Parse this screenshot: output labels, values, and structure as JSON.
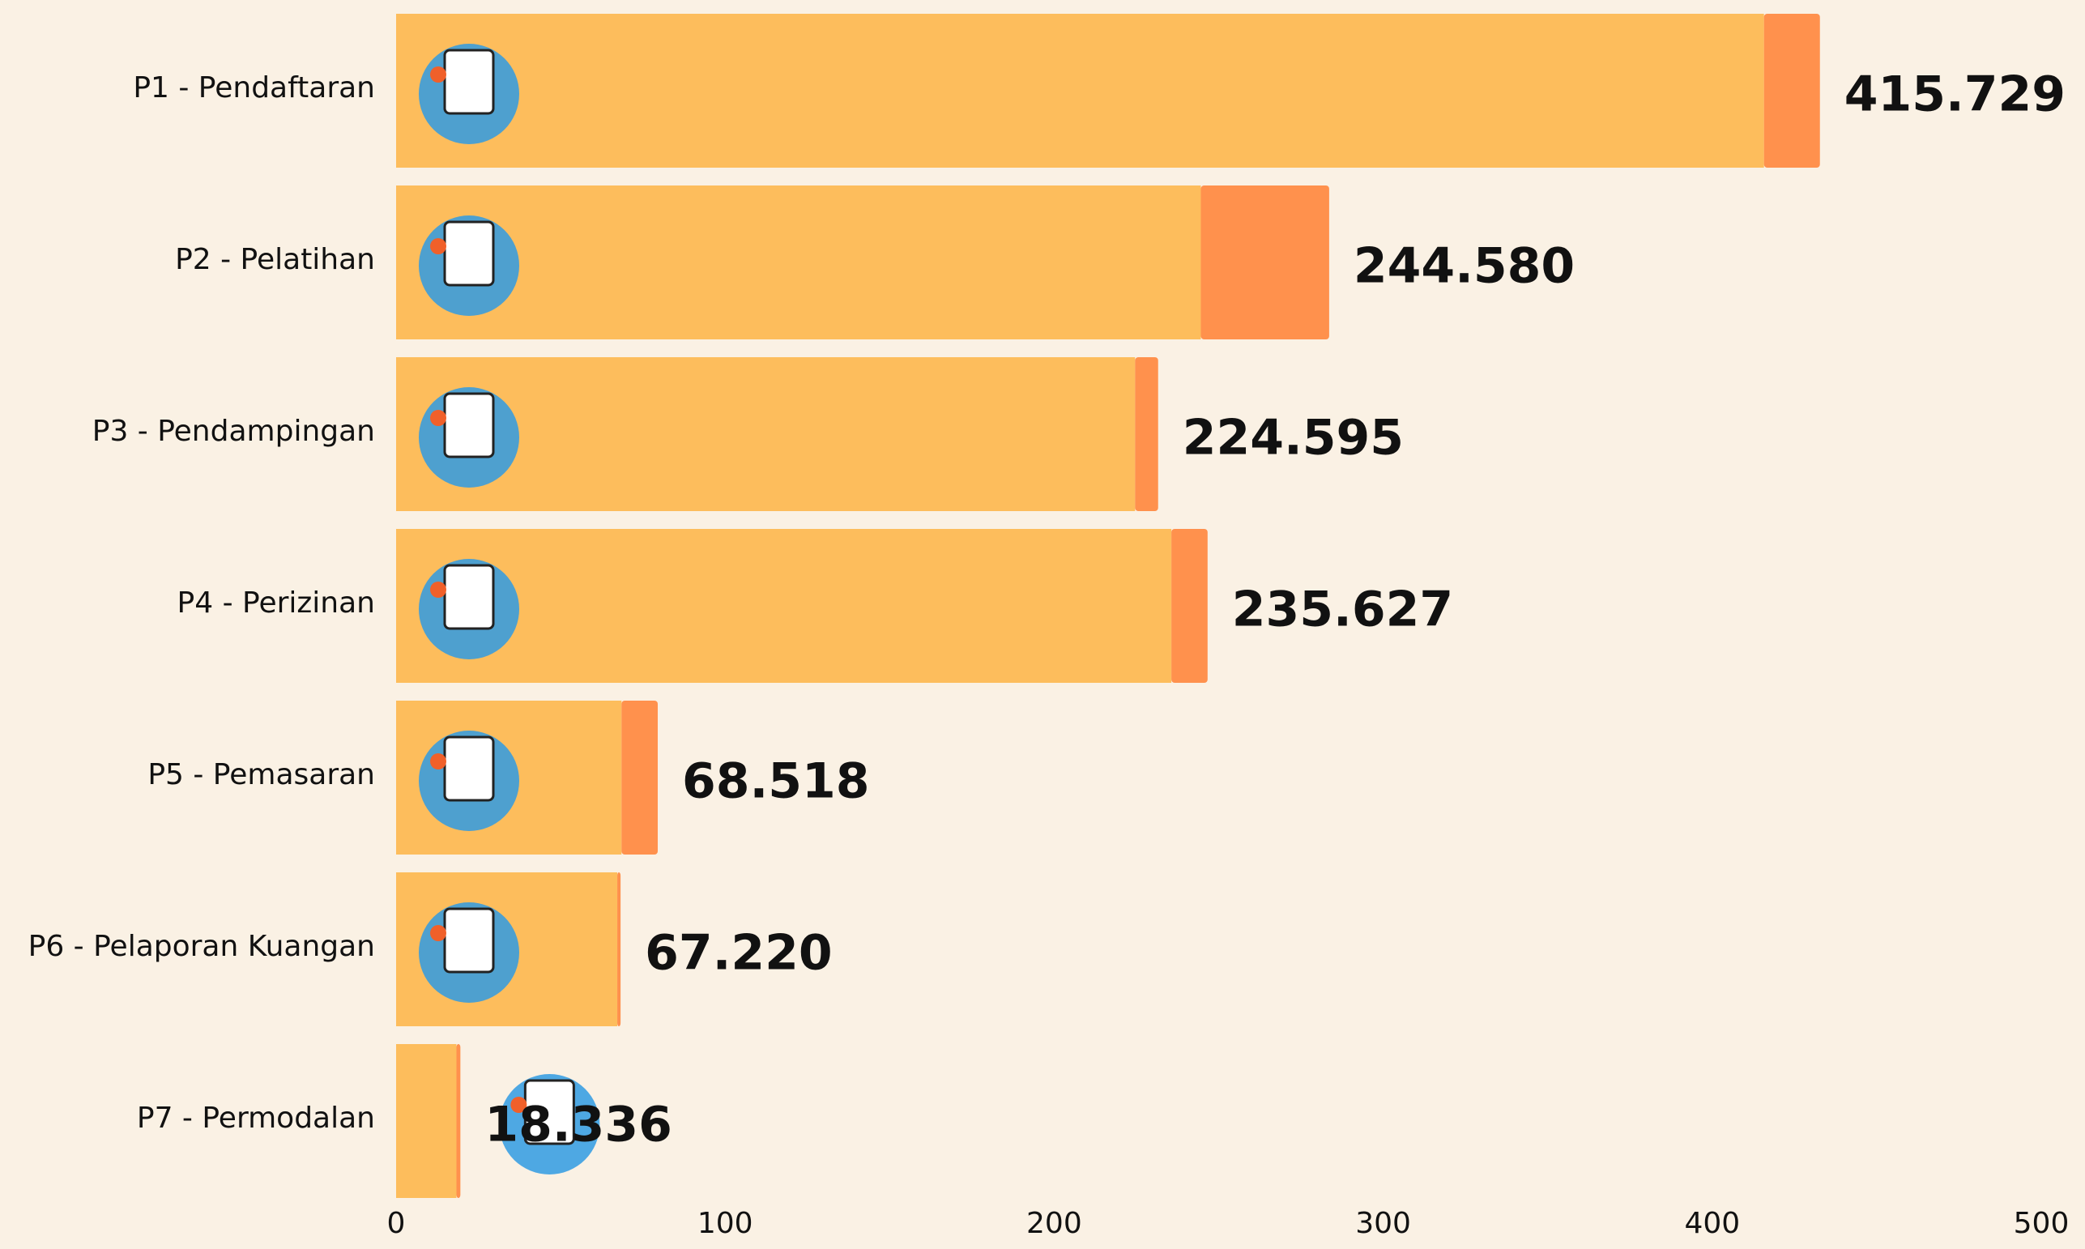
{
  "chart_data": {
    "type": "stacked-bar-horizontal",
    "categories": [
      "P1 - Pendaftaran",
      "P2 - Pelatihan",
      "P3 - Pendampingan",
      "P4 - Perizinan",
      "P5 - Pemasaran",
      "P6 - Pelaporan Kuangan",
      "P7 - Permodalan"
    ],
    "series": [
      {
        "color": "#fdbd5c",
        "values": [
          415.729,
          244.58,
          224.595,
          235.627,
          68.518,
          67.22,
          18.336
        ],
        "value_labels": [
          "415.729",
          "244.580",
          "224.595",
          "235.627",
          "68.518",
          "67.220",
          "18.336"
        ]
      },
      {
        "color": "#ff914d",
        "values": [
          17,
          39,
          7,
          11,
          11,
          1,
          1.2
        ]
      }
    ],
    "xlim": [
      0,
      500
    ],
    "xticks": [
      0,
      100,
      200,
      300,
      400,
      500
    ]
  }
}
